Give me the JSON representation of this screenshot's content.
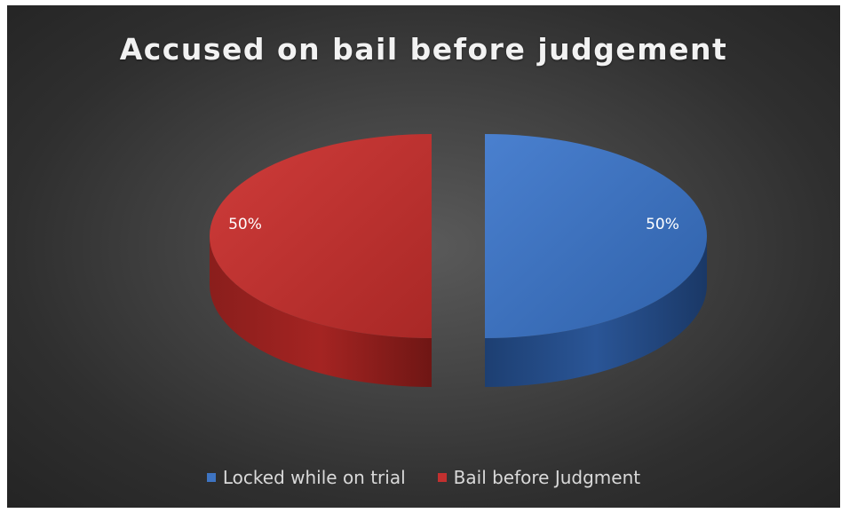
{
  "chart_data": {
    "type": "pie",
    "title": "Accused on bail before judgement",
    "style": "3d-exploded",
    "categories": [
      "Locked while on trial",
      "Bail before Judgment"
    ],
    "values": [
      50,
      50
    ],
    "data_labels": [
      "50%",
      "50%"
    ],
    "colors": [
      "#3e74c2",
      "#c2302f"
    ],
    "legend_position": "bottom"
  }
}
